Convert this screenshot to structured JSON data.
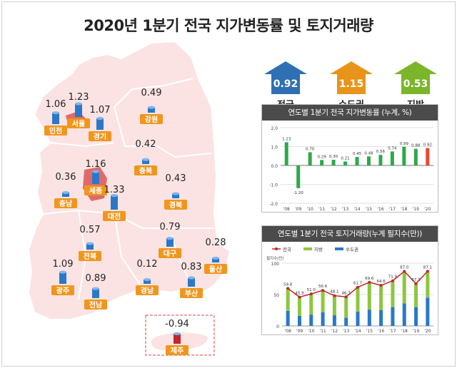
{
  "title": "2020년 1분기 전국 지가변동률 및 토지거래량",
  "summary": [
    {
      "label": "전국",
      "value": "0.92",
      "color": "#2f6fb3"
    },
    {
      "label": "수도권",
      "value": "1.15",
      "color": "#e8941a"
    },
    {
      "label": "지방",
      "value": "0.53",
      "color": "#7ab52a"
    }
  ],
  "regions": [
    {
      "name": "인천",
      "value": "1.06"
    },
    {
      "name": "서울",
      "value": "1.23"
    },
    {
      "name": "경기",
      "value": "1.07"
    },
    {
      "name": "강원",
      "value": "0.49"
    },
    {
      "name": "세종",
      "value": "1.16"
    },
    {
      "name": "충북",
      "value": "0.42"
    },
    {
      "name": "충남",
      "value": "0.36"
    },
    {
      "name": "대전",
      "value": "1.33"
    },
    {
      "name": "경북",
      "value": "0.43"
    },
    {
      "name": "전북",
      "value": "0.57"
    },
    {
      "name": "대구",
      "value": "0.79"
    },
    {
      "name": "울산",
      "value": "0.28"
    },
    {
      "name": "광주",
      "value": "1.09"
    },
    {
      "name": "전남",
      "value": "0.89"
    },
    {
      "name": "경남",
      "value": "0.12"
    },
    {
      "name": "부산",
      "value": "0.83"
    },
    {
      "name": "제주",
      "value": "-0.94"
    }
  ],
  "colors": {
    "label_bg": "#f0961e",
    "map_fill": "#fbe3e3",
    "highlight": "#e06a6a",
    "can": "#2a78c8",
    "can_neg": "#c0272d"
  },
  "chart_data": [
    {
      "type": "bar",
      "title": "연도별 1분기 전국 지가변동률 (누계, %)",
      "categories": [
        "'08",
        "'09",
        "'10",
        "'11",
        "'12",
        "'13",
        "'14",
        "'15",
        "'16",
        "'17",
        "'18",
        "'19",
        "'20"
      ],
      "values": [
        1.23,
        -1.2,
        0.7,
        0.29,
        0.3,
        0.21,
        0.45,
        0.48,
        0.56,
        0.74,
        0.99,
        0.88,
        0.92
      ],
      "value_labels": [
        "1.23",
        "-1.20",
        "0.70",
        "0.29",
        "0.30",
        "0.21",
        "0.45",
        "0.48",
        "0.56",
        "0.74",
        "0.99",
        "0.88",
        "0.92"
      ],
      "yticks": [
        "2.0",
        "1.0",
        "0.0",
        "-1.0",
        "-2.0"
      ],
      "ylim": [
        -2.0,
        2.0
      ],
      "colors": {
        "bar": "#2ea84a",
        "highlight": "#e8492f"
      }
    },
    {
      "type": "bar",
      "title": "연도별 1분기 전국 토지거래량(누계 필지수(만))",
      "ylabel": "필지수(만)",
      "categories": [
        "'08",
        "'09",
        "'10",
        "'11",
        "'12",
        "'13",
        "'14",
        "'15",
        "'16",
        "'17",
        "'18",
        "'19",
        "'20"
      ],
      "series": [
        {
          "name": "전국",
          "values": [
            59.8,
            45.9,
            51.0,
            56.6,
            48.1,
            46.3,
            61.7,
            69.6,
            64.6,
            71.9,
            87.0,
            67.3,
            87.1
          ]
        },
        {
          "name": "지방",
          "values": [
            36,
            30,
            33,
            35,
            31,
            33,
            39,
            44,
            40,
            42,
            51,
            37,
            42
          ]
        },
        {
          "name": "수도권",
          "values": [
            24,
            16,
            18,
            22,
            17,
            13,
            23,
            26,
            25,
            30,
            36,
            30,
            45
          ]
        }
      ],
      "value_labels": [
        "59.8",
        "45.9",
        "51.0",
        "56.6",
        "48.1",
        "46.3",
        "61.7",
        "69.6",
        "64.6",
        "71.9",
        "87.0",
        "67.3",
        "87.1"
      ],
      "yticks": [
        "100",
        "50",
        "0"
      ],
      "ylim": [
        0,
        100
      ],
      "colors": {
        "total": "#c0272d",
        "local": "#8dc63f",
        "capital": "#2a78c8"
      }
    }
  ]
}
